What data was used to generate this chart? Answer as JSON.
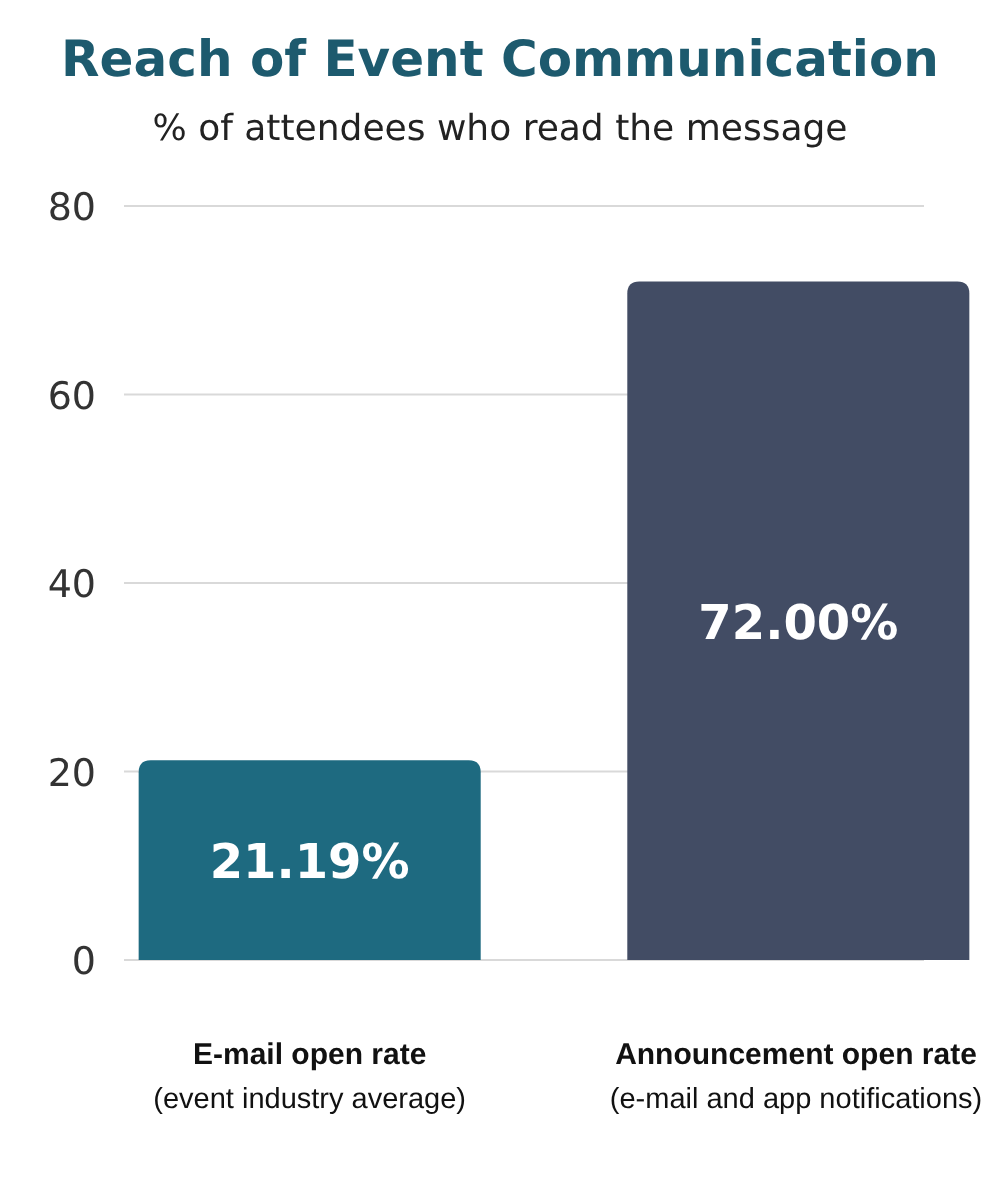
{
  "chart_data": {
    "type": "bar",
    "title": "Reach of Event Communication",
    "subtitle": "% of attendees who read the message",
    "categories": [
      "E-mail open rate\n(event industry average)",
      "Announcement open rate\n(e-mail and app notifications)"
    ],
    "values": [
      21.19,
      72.0
    ],
    "colors": [
      "#1e6a80",
      "#424c64"
    ],
    "value_labels": [
      "21.19%",
      "72.00%"
    ],
    "ylim": [
      0,
      80
    ],
    "yticks": [
      0,
      20,
      40,
      60,
      80
    ],
    "grid": "y"
  }
}
